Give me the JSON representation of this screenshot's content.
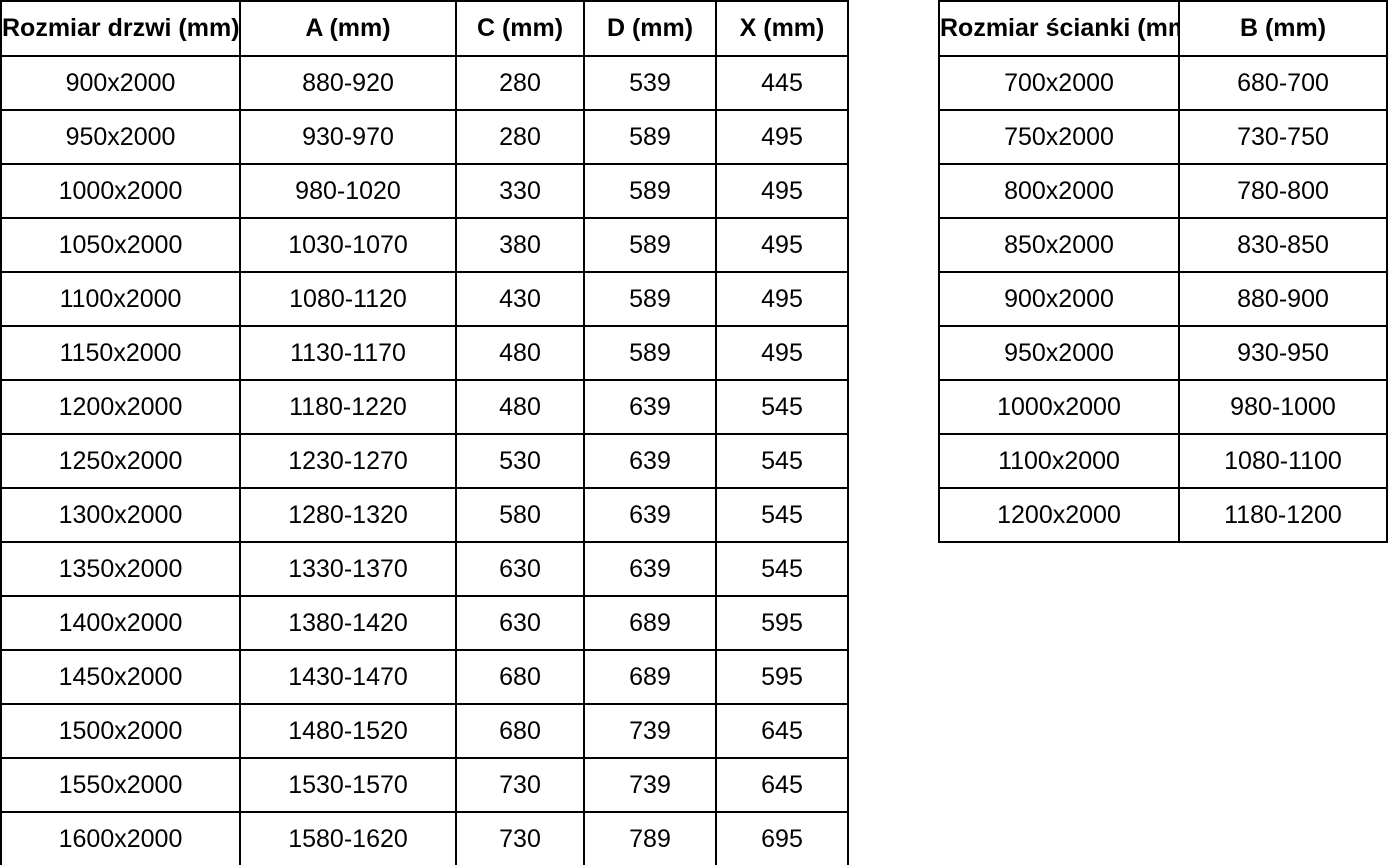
{
  "colors": {
    "border": "#000000",
    "text": "#000000",
    "background": "#ffffff"
  },
  "doors_table": {
    "headers": [
      "Rozmiar drzwi (mm)",
      "A (mm)",
      "C (mm)",
      "D (mm)",
      "X (mm)"
    ],
    "rows": [
      [
        "900x2000",
        "880-920",
        "280",
        "539",
        "445"
      ],
      [
        "950x2000",
        "930-970",
        "280",
        "589",
        "495"
      ],
      [
        "1000x2000",
        "980-1020",
        "330",
        "589",
        "495"
      ],
      [
        "1050x2000",
        "1030-1070",
        "380",
        "589",
        "495"
      ],
      [
        "1100x2000",
        "1080-1120",
        "430",
        "589",
        "495"
      ],
      [
        "1150x2000",
        "1130-1170",
        "480",
        "589",
        "495"
      ],
      [
        "1200x2000",
        "1180-1220",
        "480",
        "639",
        "545"
      ],
      [
        "1250x2000",
        "1230-1270",
        "530",
        "639",
        "545"
      ],
      [
        "1300x2000",
        "1280-1320",
        "580",
        "639",
        "545"
      ],
      [
        "1350x2000",
        "1330-1370",
        "630",
        "639",
        "545"
      ],
      [
        "1400x2000",
        "1380-1420",
        "630",
        "689",
        "595"
      ],
      [
        "1450x2000",
        "1430-1470",
        "680",
        "689",
        "595"
      ],
      [
        "1500x2000",
        "1480-1520",
        "680",
        "739",
        "645"
      ],
      [
        "1550x2000",
        "1530-1570",
        "730",
        "739",
        "645"
      ],
      [
        "1600x2000",
        "1580-1620",
        "730",
        "789",
        "695"
      ]
    ]
  },
  "walls_table": {
    "headers": [
      "Rozmiar ścianki (mm)",
      "B (mm)"
    ],
    "rows": [
      [
        "700x2000",
        "680-700"
      ],
      [
        "750x2000",
        "730-750"
      ],
      [
        "800x2000",
        "780-800"
      ],
      [
        "850x2000",
        "830-850"
      ],
      [
        "900x2000",
        "880-900"
      ],
      [
        "950x2000",
        "930-950"
      ],
      [
        "1000x2000",
        "980-1000"
      ],
      [
        "1100x2000",
        "1080-1100"
      ],
      [
        "1200x2000",
        "1180-1200"
      ]
    ]
  }
}
